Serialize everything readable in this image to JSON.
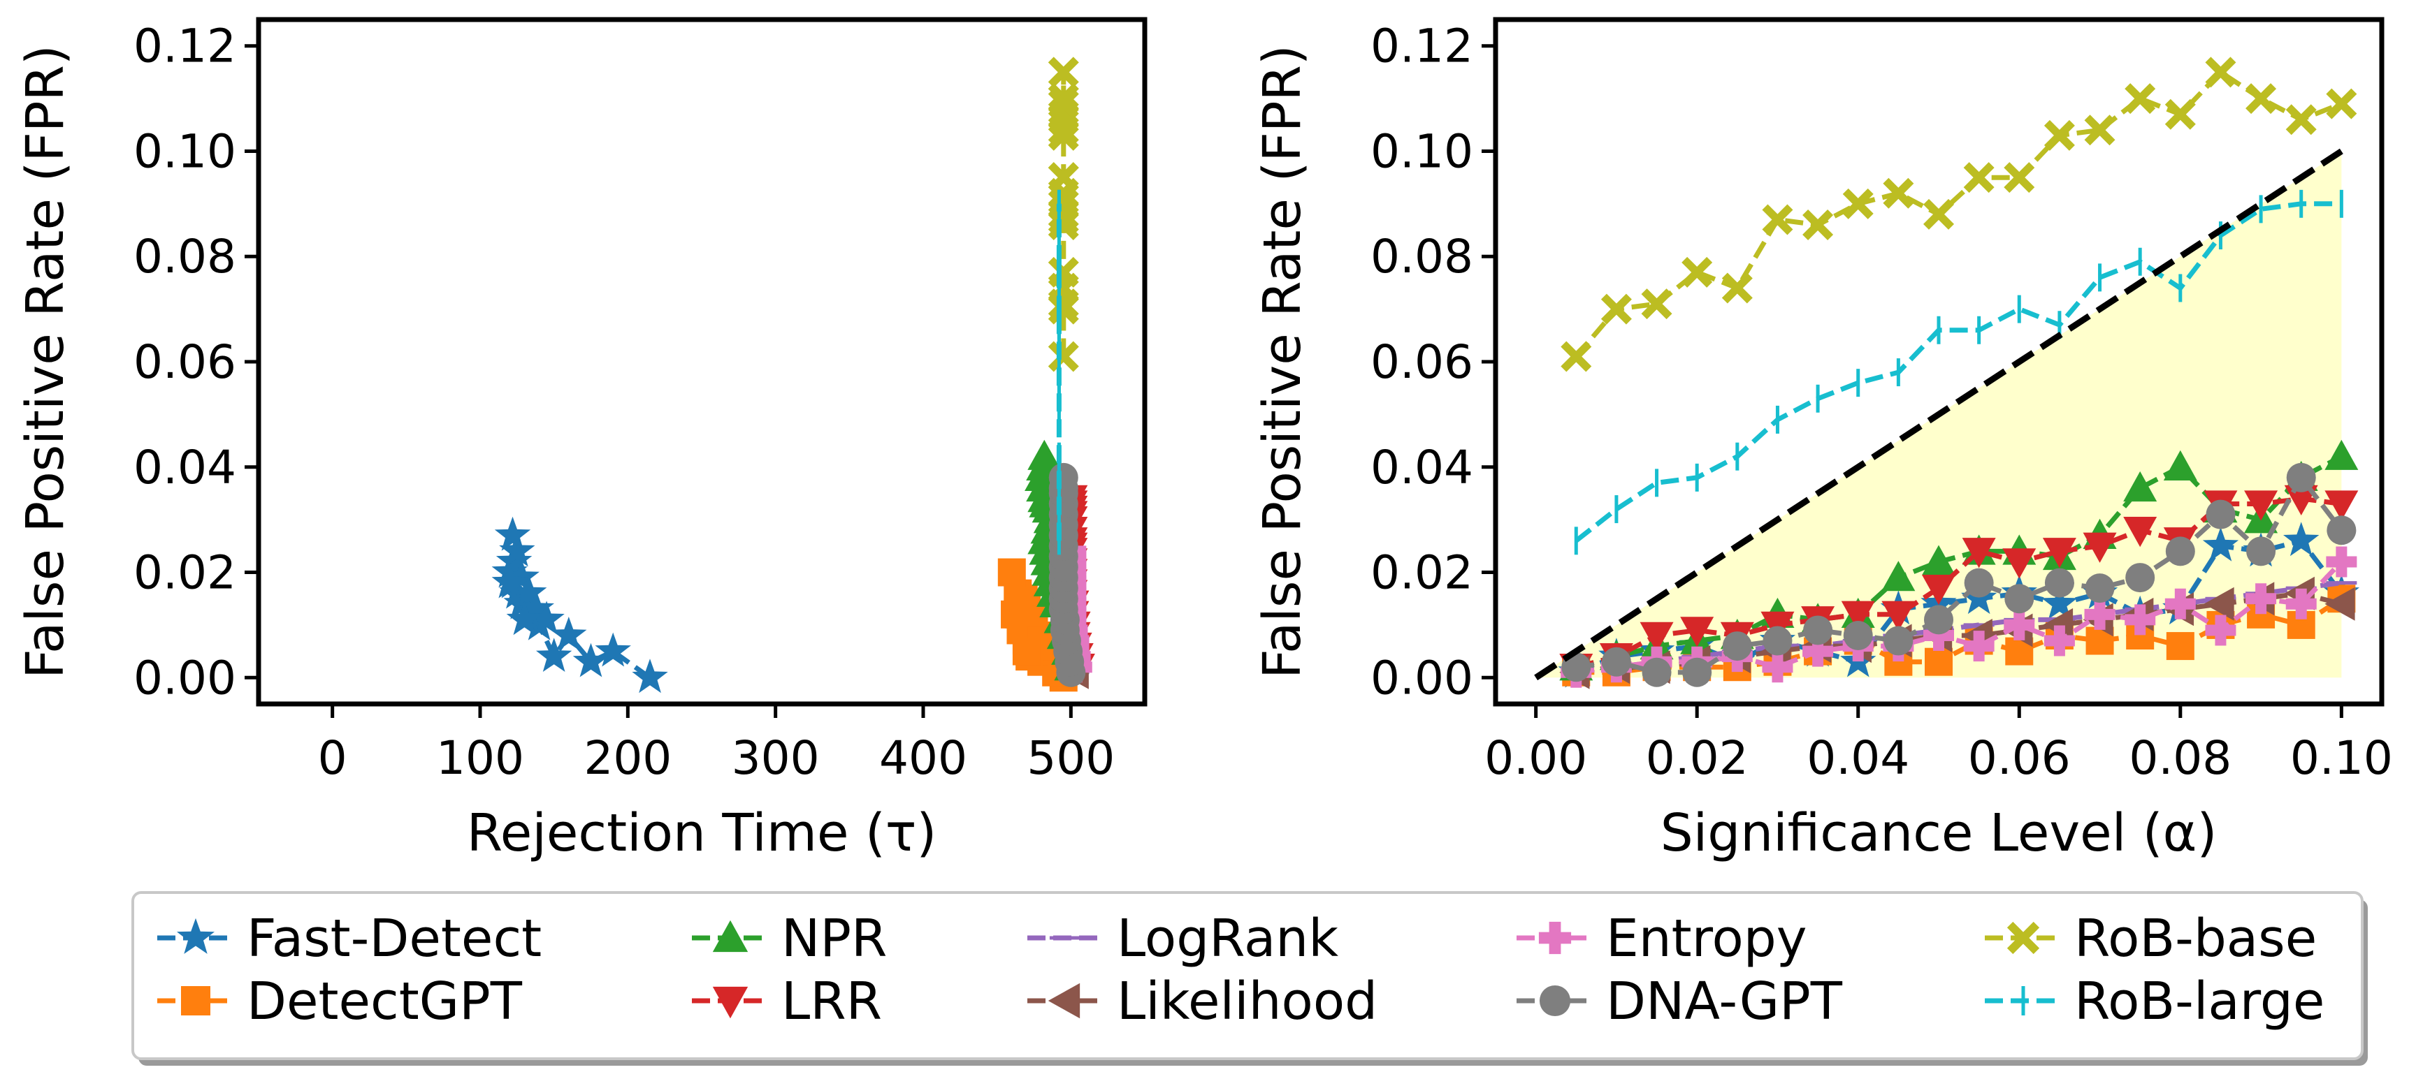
{
  "chart_data": [
    {
      "type": "line",
      "name": "left-panel",
      "xlabel": "Rejection Time (τ)",
      "ylabel": "False Positive Rate (FPR)",
      "xlim": [
        -50,
        550
      ],
      "ylim": [
        -0.005,
        0.125
      ],
      "xticks": [
        0,
        100,
        200,
        300,
        400,
        500
      ],
      "xtick_labels": [
        "0",
        "100",
        "200",
        "300",
        "400",
        "500"
      ],
      "yticks": [
        0.0,
        0.02,
        0.04,
        0.06,
        0.08,
        0.1,
        0.12
      ],
      "ytick_labels": [
        "0.00",
        "0.02",
        "0.04",
        "0.06",
        "0.08",
        "0.10",
        "0.12"
      ],
      "series": [
        {
          "name": "Fast-Detect",
          "x": [
            215,
            190,
            175,
            160,
            150,
            140,
            135,
            128,
            125,
            122,
            120,
            123,
            128,
            133,
            138,
            145,
            130,
            120,
            125,
            122
          ],
          "y": [
            0.0,
            0.005,
            0.003,
            0.008,
            0.004,
            0.01,
            0.012,
            0.014,
            0.016,
            0.018,
            0.02,
            0.022,
            0.019,
            0.016,
            0.013,
            0.011,
            0.011,
            0.018,
            0.024,
            0.027
          ]
        },
        {
          "name": "DetectGPT",
          "x": [
            495,
            490,
            480,
            475,
            470,
            468,
            465,
            470,
            475,
            478,
            480,
            472,
            466,
            462,
            468,
            474,
            480,
            470,
            464,
            460
          ],
          "y": [
            0.0,
            0.001,
            0.003,
            0.005,
            0.007,
            0.009,
            0.012,
            0.014,
            0.01,
            0.008,
            0.006,
            0.004,
            0.009,
            0.012,
            0.015,
            0.011,
            0.007,
            0.005,
            0.016,
            0.02
          ]
        },
        {
          "name": "NPR",
          "x": [
            500,
            498,
            495,
            493,
            490,
            488,
            486,
            485,
            484,
            483,
            482,
            484,
            486,
            485,
            483,
            482,
            481,
            480,
            481,
            482
          ],
          "y": [
            0.002,
            0.005,
            0.008,
            0.011,
            0.014,
            0.016,
            0.018,
            0.02,
            0.022,
            0.024,
            0.026,
            0.028,
            0.03,
            0.032,
            0.033,
            0.034,
            0.036,
            0.038,
            0.04,
            0.042
          ]
        },
        {
          "name": "LRR",
          "x": [
            505,
            504,
            503,
            502,
            502,
            501,
            501,
            500,
            500,
            500,
            500,
            500,
            500,
            500,
            500,
            500,
            500,
            500,
            500,
            500
          ],
          "y": [
            0.002,
            0.004,
            0.006,
            0.008,
            0.01,
            0.012,
            0.014,
            0.016,
            0.018,
            0.02,
            0.022,
            0.024,
            0.025,
            0.026,
            0.028,
            0.03,
            0.031,
            0.032,
            0.033,
            0.034
          ]
        },
        {
          "name": "LogRank",
          "x": [
            502,
            501,
            501,
            500,
            500,
            500,
            500,
            500,
            500,
            500,
            500,
            500,
            500,
            500,
            500,
            500,
            500,
            500,
            500,
            500
          ],
          "y": [
            0.001,
            0.002,
            0.003,
            0.004,
            0.005,
            0.006,
            0.007,
            0.008,
            0.009,
            0.01,
            0.011,
            0.012,
            0.013,
            0.014,
            0.015,
            0.016,
            0.017,
            0.018,
            0.019,
            0.02
          ]
        },
        {
          "name": "Likelihood",
          "x": [
            503,
            502,
            502,
            501,
            501,
            500,
            500,
            500,
            500,
            500,
            500,
            500,
            500,
            500,
            500,
            500,
            500,
            500,
            500,
            500
          ],
          "y": [
            0.001,
            0.002,
            0.003,
            0.004,
            0.005,
            0.006,
            0.007,
            0.008,
            0.009,
            0.01,
            0.011,
            0.012,
            0.013,
            0.014,
            0.015,
            0.016,
            0.017,
            0.018,
            0.019,
            0.02
          ]
        },
        {
          "name": "Entropy",
          "x": [
            504,
            503,
            502,
            502,
            501,
            501,
            500,
            500,
            500,
            500,
            500,
            500,
            500,
            500,
            500,
            500,
            500,
            500,
            500,
            500
          ],
          "y": [
            0.002,
            0.004,
            0.005,
            0.007,
            0.008,
            0.009,
            0.011,
            0.012,
            0.013,
            0.014,
            0.015,
            0.016,
            0.017,
            0.018,
            0.019,
            0.02,
            0.021,
            0.022,
            0.023,
            0.024
          ]
        },
        {
          "name": "DNA-GPT",
          "x": [
            500,
            499,
            498,
            497,
            496,
            496,
            495,
            495,
            495,
            495,
            495,
            495,
            495,
            495,
            495,
            495,
            495,
            495,
            495,
            495
          ],
          "y": [
            0.001,
            0.003,
            0.005,
            0.007,
            0.009,
            0.011,
            0.013,
            0.015,
            0.017,
            0.019,
            0.021,
            0.023,
            0.025,
            0.027,
            0.029,
            0.031,
            0.033,
            0.035,
            0.036,
            0.038
          ]
        },
        {
          "name": "RoB-base",
          "x": [
            495,
            495,
            495,
            495,
            495,
            495,
            495,
            495,
            495,
            495,
            495,
            495,
            495,
            495,
            495,
            495,
            495,
            495,
            495,
            495
          ],
          "y": [
            0.061,
            0.07,
            0.071,
            0.077,
            0.074,
            0.087,
            0.086,
            0.09,
            0.092,
            0.088,
            0.095,
            0.095,
            0.103,
            0.104,
            0.11,
            0.107,
            0.115,
            0.11,
            0.106,
            0.109
          ]
        },
        {
          "name": "RoB-large",
          "x": [
            492,
            492,
            492,
            492,
            492,
            492,
            492,
            492,
            492,
            492,
            492,
            492,
            492,
            492,
            492,
            492,
            492,
            492,
            492,
            492
          ],
          "y": [
            0.026,
            0.032,
            0.037,
            0.038,
            0.042,
            0.049,
            0.053,
            0.056,
            0.058,
            0.066,
            0.066,
            0.07,
            0.067,
            0.076,
            0.079,
            0.074,
            0.084,
            0.089,
            0.09,
            0.09
          ]
        }
      ]
    },
    {
      "type": "line",
      "name": "right-panel",
      "xlabel": "Significance Level (α)",
      "ylabel": "False Positive Rate (FPR)",
      "xlim": [
        -0.005,
        0.105
      ],
      "ylim": [
        -0.005,
        0.125
      ],
      "xticks": [
        0.0,
        0.02,
        0.04,
        0.06,
        0.08,
        0.1
      ],
      "xtick_labels": [
        "0.00",
        "0.02",
        "0.04",
        "0.06",
        "0.08",
        "0.10"
      ],
      "yticks": [
        0.0,
        0.02,
        0.04,
        0.06,
        0.08,
        0.1,
        0.12
      ],
      "ytick_labels": [
        "0.00",
        "0.02",
        "0.04",
        "0.06",
        "0.08",
        "0.10",
        "0.12"
      ],
      "reference_line": {
        "x": [
          0.0,
          0.1
        ],
        "y": [
          0.0,
          0.1
        ],
        "style": "dashed",
        "color": "#000000"
      },
      "shaded_region": {
        "x": [
          0.0,
          0.1
        ],
        "y_low": 0.0,
        "y_high_equals_x": true,
        "color": "#ffffcc"
      },
      "x": [
        0.005,
        0.01,
        0.015,
        0.02,
        0.025,
        0.03,
        0.035,
        0.04,
        0.045,
        0.05,
        0.055,
        0.06,
        0.065,
        0.07,
        0.075,
        0.08,
        0.085,
        0.09,
        0.095,
        0.1
      ],
      "series": [
        {
          "name": "Fast-Detect",
          "values": [
            0.001,
            0.004,
            0.005,
            0.006,
            0.003,
            0.007,
            0.005,
            0.003,
            0.013,
            0.014,
            0.015,
            0.016,
            0.014,
            0.016,
            0.012,
            0.013,
            0.025,
            0.024,
            0.026,
            0.016
          ]
        },
        {
          "name": "DetectGPT",
          "values": [
            0.001,
            0.001,
            0.002,
            0.002,
            0.002,
            0.003,
            0.005,
            0.007,
            0.003,
            0.003,
            0.007,
            0.005,
            0.008,
            0.007,
            0.008,
            0.006,
            0.01,
            0.012,
            0.01,
            0.015
          ]
        },
        {
          "name": "NPR",
          "values": [
            0.002,
            0.004,
            0.006,
            0.007,
            0.008,
            0.012,
            0.011,
            0.012,
            0.019,
            0.022,
            0.024,
            0.024,
            0.023,
            0.027,
            0.036,
            0.04,
            0.032,
            0.03,
            0.038,
            0.042
          ]
        },
        {
          "name": "LRR",
          "values": [
            0.002,
            0.004,
            0.008,
            0.009,
            0.008,
            0.01,
            0.011,
            0.012,
            0.012,
            0.017,
            0.024,
            0.022,
            0.024,
            0.025,
            0.028,
            0.026,
            0.033,
            0.033,
            0.034,
            0.033
          ]
        },
        {
          "name": "LogRank",
          "values": [
            0.001,
            0.002,
            0.003,
            0.004,
            0.005,
            0.006,
            0.006,
            0.007,
            0.008,
            0.009,
            0.01,
            0.011,
            0.011,
            0.012,
            0.013,
            0.014,
            0.015,
            0.016,
            0.017,
            0.018
          ]
        },
        {
          "name": "Likelihood",
          "values": [
            0.001,
            0.002,
            0.002,
            0.003,
            0.004,
            0.005,
            0.006,
            0.006,
            0.007,
            0.008,
            0.008,
            0.009,
            0.01,
            0.011,
            0.012,
            0.013,
            0.014,
            0.015,
            0.016,
            0.014
          ]
        },
        {
          "name": "Entropy",
          "values": [
            0.001,
            0.002,
            0.003,
            0.003,
            0.004,
            0.002,
            0.005,
            0.006,
            0.006,
            0.008,
            0.006,
            0.01,
            0.007,
            0.012,
            0.011,
            0.014,
            0.009,
            0.015,
            0.014,
            0.022
          ]
        },
        {
          "name": "DNA-GPT",
          "values": [
            0.002,
            0.003,
            0.001,
            0.001,
            0.006,
            0.007,
            0.009,
            0.008,
            0.007,
            0.011,
            0.018,
            0.015,
            0.018,
            0.017,
            0.019,
            0.024,
            0.031,
            0.024,
            0.038,
            0.028
          ]
        },
        {
          "name": "RoB-base",
          "values": [
            0.061,
            0.07,
            0.071,
            0.077,
            0.074,
            0.087,
            0.086,
            0.09,
            0.092,
            0.088,
            0.095,
            0.095,
            0.103,
            0.104,
            0.11,
            0.107,
            0.115,
            0.11,
            0.106,
            0.109
          ]
        },
        {
          "name": "RoB-large",
          "values": [
            0.026,
            0.032,
            0.037,
            0.038,
            0.042,
            0.049,
            0.053,
            0.056,
            0.058,
            0.066,
            0.066,
            0.07,
            0.067,
            0.076,
            0.079,
            0.074,
            0.084,
            0.089,
            0.09,
            0.09
          ]
        }
      ]
    }
  ],
  "legend": {
    "placement": "bottom",
    "entries": [
      {
        "name": "Fast-Detect",
        "color": "#1f77b4",
        "marker": "star",
        "dash": "dashed"
      },
      {
        "name": "DetectGPT",
        "color": "#ff7f0e",
        "marker": "square",
        "dash": "dashed"
      },
      {
        "name": "NPR",
        "color": "#2ca02c",
        "marker": "triangle-up",
        "dash": "dashed"
      },
      {
        "name": "LRR",
        "color": "#d62728",
        "marker": "triangle-down",
        "dash": "dashed"
      },
      {
        "name": "LogRank",
        "color": "#9467bd",
        "marker": "hline",
        "dash": "dashed"
      },
      {
        "name": "Likelihood",
        "color": "#8c564b",
        "marker": "triangle-left",
        "dash": "dashed"
      },
      {
        "name": "Entropy",
        "color": "#e377c2",
        "marker": "plus",
        "dash": "dashed"
      },
      {
        "name": "DNA-GPT",
        "color": "#7f7f7f",
        "marker": "circle",
        "dash": "dashed"
      },
      {
        "name": "RoB-base",
        "color": "#bcbd22",
        "marker": "x",
        "dash": "dashed"
      },
      {
        "name": "RoB-large",
        "color": "#17becf",
        "marker": "vline",
        "dash": "dashed"
      }
    ]
  }
}
